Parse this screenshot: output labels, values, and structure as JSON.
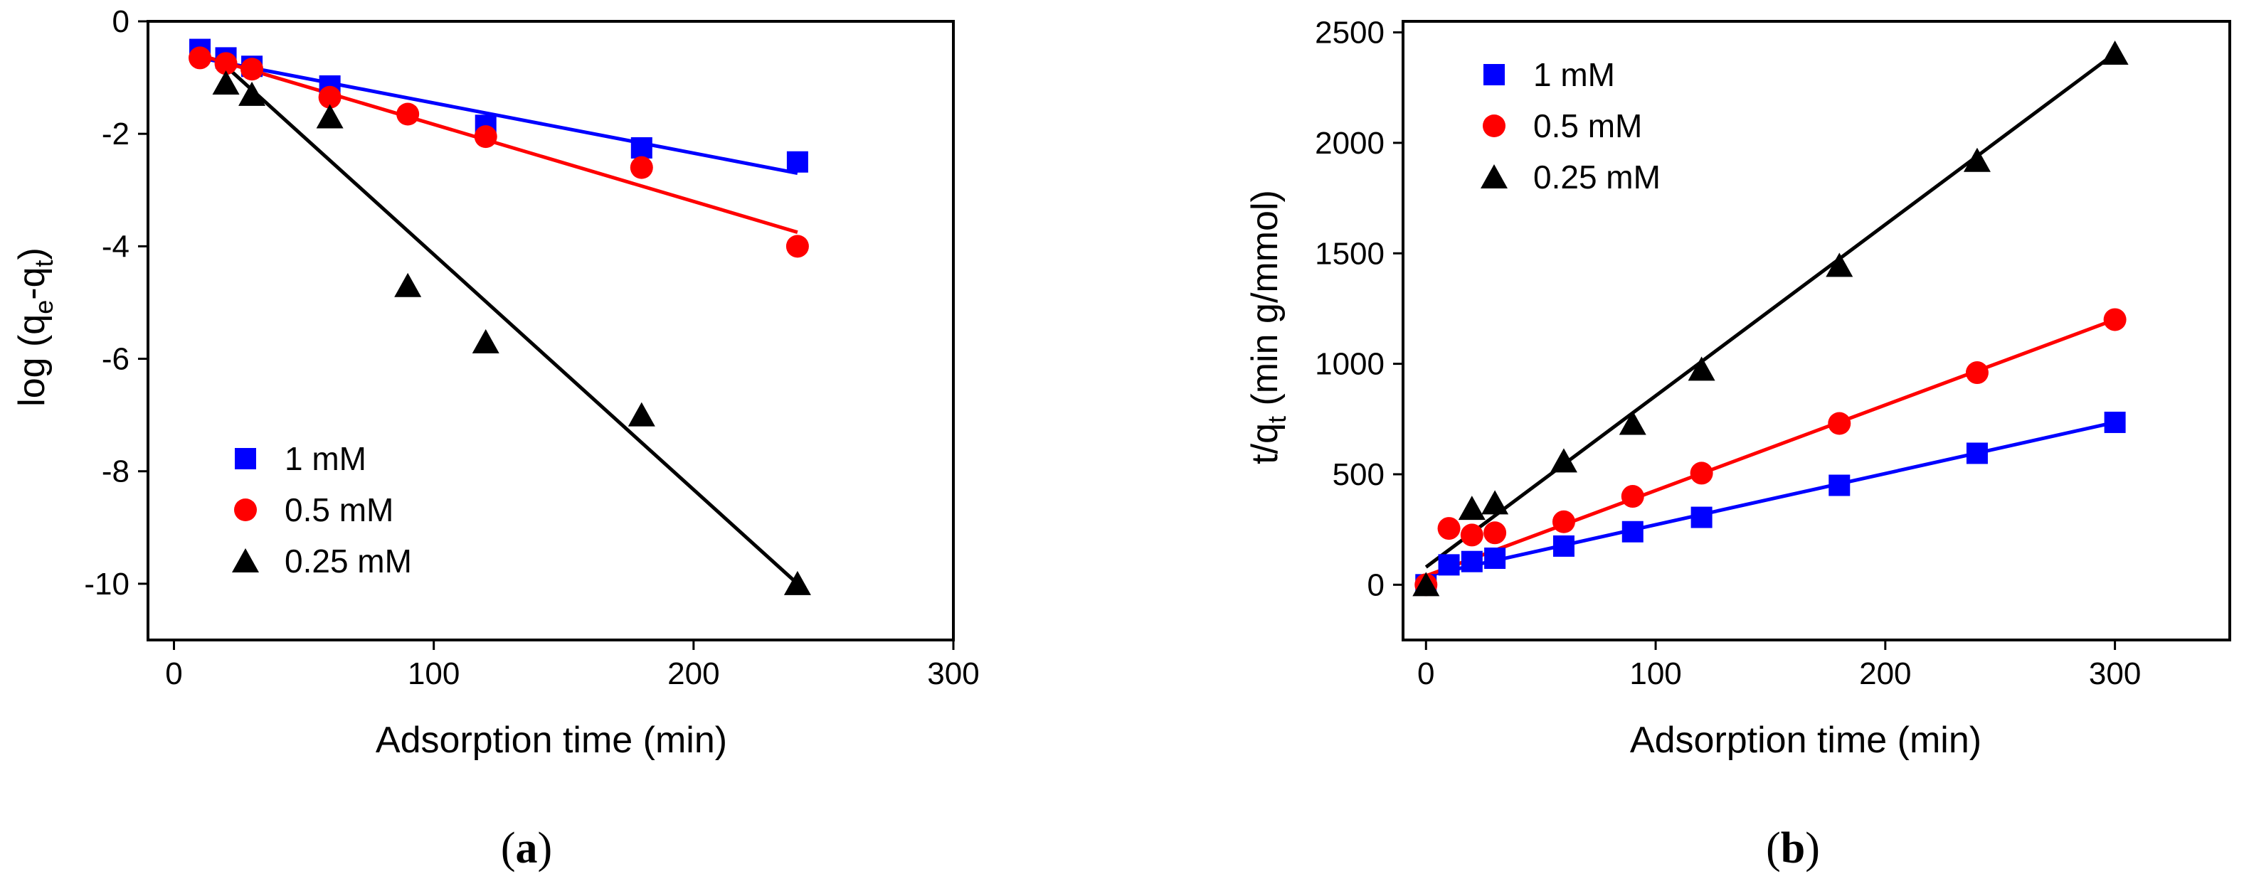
{
  "figure": {
    "panels": [
      {
        "id": "a",
        "label_open": "(",
        "label_letter": "a",
        "label_close": ")"
      },
      {
        "id": "b",
        "label_open": "(",
        "label_letter": "b",
        "label_close": ")"
      }
    ]
  },
  "chart_data": [
    {
      "id": "a",
      "type": "scatter",
      "title": "",
      "xlabel": "Adsorption time (min)",
      "ylabel_parts": [
        "log (q",
        "e",
        "-q",
        "t",
        ")"
      ],
      "xlim": [
        -10,
        300
      ],
      "ylim": [
        -11,
        0
      ],
      "xticks": [
        0,
        100,
        200,
        300
      ],
      "yticks": [
        0,
        -2,
        -4,
        -6,
        -8,
        -10
      ],
      "legend_position": "bottom-left",
      "series": [
        {
          "name": "1 mM",
          "marker": "square",
          "color": "#0000ff",
          "x": [
            10,
            20,
            30,
            60,
            120,
            180,
            240
          ],
          "y": [
            -0.5,
            -0.65,
            -0.8,
            -1.15,
            -1.85,
            -2.25,
            -2.5
          ],
          "fit": {
            "x": [
              10,
              240
            ],
            "y": [
              -0.65,
              -2.7
            ]
          }
        },
        {
          "name": "0.5 mM",
          "marker": "circle",
          "color": "#ff0000",
          "x": [
            10,
            20,
            30,
            60,
            90,
            120,
            180,
            240
          ],
          "y": [
            -0.65,
            -0.75,
            -0.85,
            -1.35,
            -1.65,
            -2.05,
            -2.6,
            -4.0
          ],
          "fit": {
            "x": [
              10,
              240
            ],
            "y": [
              -0.6,
              -3.75
            ]
          }
        },
        {
          "name": "0.25 mM",
          "marker": "triangle",
          "color": "#000000",
          "x": [
            20,
            30,
            60,
            90,
            120,
            180,
            240
          ],
          "y": [
            -1.1,
            -1.3,
            -1.7,
            -4.7,
            -5.7,
            -7.0,
            -10.0
          ],
          "fit": {
            "x": [
              20,
              240
            ],
            "y": [
              -0.8,
              -10.0
            ]
          }
        }
      ]
    },
    {
      "id": "b",
      "type": "scatter",
      "title": "",
      "xlabel": "Adsorption time (min)",
      "ylabel_parts": [
        "t/q",
        "t",
        " (min g/mmol)"
      ],
      "xlim": [
        -10,
        350
      ],
      "ylim": [
        -250,
        2550
      ],
      "xticks": [
        0,
        100,
        200,
        300
      ],
      "yticks": [
        0,
        500,
        1000,
        1500,
        2000,
        2500
      ],
      "legend_position": "top-left",
      "series": [
        {
          "name": "1 mM",
          "marker": "square",
          "color": "#0000ff",
          "x": [
            0,
            10,
            20,
            30,
            60,
            90,
            120,
            180,
            240,
            300
          ],
          "y": [
            0,
            90,
            105,
            120,
            175,
            240,
            305,
            450,
            595,
            735
          ],
          "fit": {
            "x": [
              0,
              300
            ],
            "y": [
              40,
              735
            ]
          }
        },
        {
          "name": "0.5 mM",
          "marker": "circle",
          "color": "#ff0000",
          "x": [
            0,
            10,
            20,
            30,
            60,
            90,
            120,
            180,
            240,
            300
          ],
          "y": [
            0,
            255,
            225,
            235,
            285,
            400,
            505,
            730,
            960,
            1200
          ],
          "fit": {
            "x": [
              0,
              300
            ],
            "y": [
              40,
              1200
            ]
          }
        },
        {
          "name": "0.25 mM",
          "marker": "triangle",
          "color": "#000000",
          "x": [
            0,
            20,
            30,
            60,
            90,
            120,
            180,
            240,
            300
          ],
          "y": [
            0,
            345,
            370,
            560,
            730,
            975,
            1445,
            1920,
            2405
          ],
          "fit": {
            "x": [
              0,
              300
            ],
            "y": [
              80,
              2405
            ]
          }
        }
      ]
    }
  ]
}
